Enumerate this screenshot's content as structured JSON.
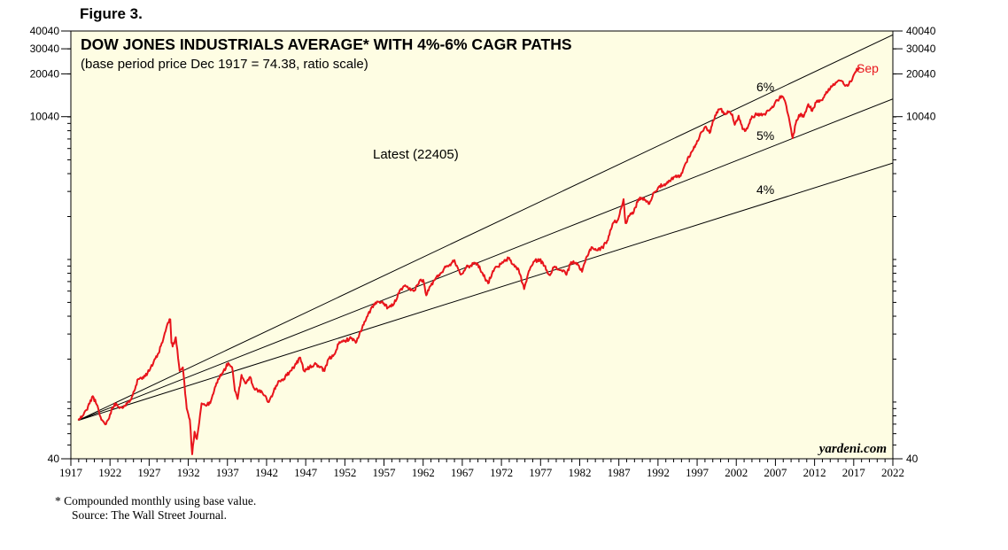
{
  "figure_label": "Figure 3.",
  "chart_data": {
    "type": "line",
    "title": "DOW JONES INDUSTRIALS AVERAGE* WITH 4%-6% CAGR PATHS",
    "subtitle": "(base period price Dec 1917 = 74.38, ratio scale)",
    "scale": "log",
    "xlim": [
      1917,
      2022
    ],
    "ylim": [
      40,
      40040
    ],
    "x_ticks": [
      "1917",
      "1922",
      "1927",
      "1932",
      "1937",
      "1942",
      "1947",
      "1952",
      "1957",
      "1962",
      "1967",
      "1972",
      "1977",
      "1982",
      "1987",
      "1992",
      "1997",
      "2002",
      "2007",
      "2012",
      "2017",
      "2022"
    ],
    "y_ticks_left": [
      "40040",
      "30040",
      "20040",
      "10040",
      "40"
    ],
    "y_ticks_right": [
      "40040",
      "30040",
      "20040",
      "10040",
      "40"
    ],
    "base": {
      "year": 1917.95,
      "value": 74.38
    },
    "paths": [
      {
        "name": "6%",
        "label": "6%",
        "rate": 0.06
      },
      {
        "name": "5%",
        "label": "5%",
        "rate": 0.05
      },
      {
        "name": "4%",
        "label": "4%",
        "rate": 0.04
      }
    ],
    "series": [
      {
        "name": "Dow Jones Industrials Average",
        "color": "#e8141b",
        "points": [
          [
            1917.95,
            74.4
          ],
          [
            1918.5,
            80
          ],
          [
            1919.0,
            88
          ],
          [
            1919.8,
            110
          ],
          [
            1920.3,
            96
          ],
          [
            1920.9,
            75
          ],
          [
            1921.5,
            70
          ],
          [
            1922.0,
            82
          ],
          [
            1922.6,
            98
          ],
          [
            1923.3,
            92
          ],
          [
            1923.9,
            94
          ],
          [
            1924.5,
            100
          ],
          [
            1925.0,
            118
          ],
          [
            1925.6,
            145
          ],
          [
            1926.2,
            150
          ],
          [
            1926.8,
            160
          ],
          [
            1927.5,
            185
          ],
          [
            1928.2,
            220
          ],
          [
            1928.8,
            275
          ],
          [
            1929.4,
            360
          ],
          [
            1929.7,
            380
          ],
          [
            1929.85,
            260
          ],
          [
            1930.0,
            245
          ],
          [
            1930.4,
            285
          ],
          [
            1930.9,
            165
          ],
          [
            1931.3,
            175
          ],
          [
            1931.8,
            90
          ],
          [
            1932.2,
            75
          ],
          [
            1932.5,
            43
          ],
          [
            1932.8,
            62
          ],
          [
            1933.1,
            55
          ],
          [
            1933.7,
            98
          ],
          [
            1934.2,
            95
          ],
          [
            1934.8,
            98
          ],
          [
            1935.3,
            120
          ],
          [
            1935.8,
            145
          ],
          [
            1936.4,
            160
          ],
          [
            1937.1,
            188
          ],
          [
            1937.6,
            175
          ],
          [
            1937.95,
            120
          ],
          [
            1938.3,
            105
          ],
          [
            1938.8,
            155
          ],
          [
            1939.3,
            135
          ],
          [
            1939.9,
            150
          ],
          [
            1940.4,
            125
          ],
          [
            1941.0,
            120
          ],
          [
            1941.5,
            115
          ],
          [
            1942.3,
            100
          ],
          [
            1942.9,
            118
          ],
          [
            1943.5,
            140
          ],
          [
            1944.2,
            145
          ],
          [
            1945.0,
            165
          ],
          [
            1945.6,
            180
          ],
          [
            1946.3,
            205
          ],
          [
            1946.8,
            165
          ],
          [
            1947.5,
            175
          ],
          [
            1948.3,
            185
          ],
          [
            1948.8,
            175
          ],
          [
            1949.4,
            165
          ],
          [
            1949.9,
            200
          ],
          [
            1950.5,
            210
          ],
          [
            1951.2,
            255
          ],
          [
            1952.0,
            270
          ],
          [
            1952.8,
            280
          ],
          [
            1953.5,
            265
          ],
          [
            1954.2,
            330
          ],
          [
            1954.9,
            400
          ],
          [
            1955.5,
            470
          ],
          [
            1956.3,
            505
          ],
          [
            1956.9,
            490
          ],
          [
            1957.5,
            460
          ],
          [
            1958.2,
            480
          ],
          [
            1958.9,
            580
          ],
          [
            1959.5,
            650
          ],
          [
            1960.2,
            620
          ],
          [
            1960.8,
            600
          ],
          [
            1961.5,
            700
          ],
          [
            1962.0,
            720
          ],
          [
            1962.4,
            560
          ],
          [
            1962.9,
            650
          ],
          [
            1963.5,
            720
          ],
          [
            1964.2,
            800
          ],
          [
            1965.0,
            900
          ],
          [
            1965.6,
            940
          ],
          [
            1966.0,
            990
          ],
          [
            1966.5,
            850
          ],
          [
            1966.9,
            790
          ],
          [
            1967.5,
            880
          ],
          [
            1968.0,
            900
          ],
          [
            1968.5,
            950
          ],
          [
            1969.0,
            920
          ],
          [
            1969.6,
            800
          ],
          [
            1970.3,
            680
          ],
          [
            1970.9,
            830
          ],
          [
            1971.5,
            890
          ],
          [
            1972.2,
            950
          ],
          [
            1972.9,
            1020
          ],
          [
            1973.5,
            920
          ],
          [
            1974.2,
            850
          ],
          [
            1974.9,
            620
          ],
          [
            1975.5,
            830
          ],
          [
            1976.2,
            970
          ],
          [
            1976.9,
            1000
          ],
          [
            1977.5,
            900
          ],
          [
            1978.1,
            780
          ],
          [
            1978.7,
            880
          ],
          [
            1979.3,
            850
          ],
          [
            1979.9,
            840
          ],
          [
            1980.3,
            780
          ],
          [
            1980.9,
            960
          ],
          [
            1981.5,
            950
          ],
          [
            1982.3,
            820
          ],
          [
            1982.9,
            1050
          ],
          [
            1983.5,
            1220
          ],
          [
            1984.2,
            1160
          ],
          [
            1984.9,
            1210
          ],
          [
            1985.5,
            1350
          ],
          [
            1986.2,
            1780
          ],
          [
            1986.9,
            1900
          ],
          [
            1987.6,
            2650
          ],
          [
            1987.85,
            1800
          ],
          [
            1988.4,
            2050
          ],
          [
            1988.9,
            2150
          ],
          [
            1989.5,
            2650
          ],
          [
            1990.2,
            2700
          ],
          [
            1990.8,
            2450
          ],
          [
            1991.5,
            2950
          ],
          [
            1992.2,
            3280
          ],
          [
            1992.9,
            3300
          ],
          [
            1993.5,
            3550
          ],
          [
            1994.2,
            3800
          ],
          [
            1994.9,
            3850
          ],
          [
            1995.5,
            4700
          ],
          [
            1996.2,
            5600
          ],
          [
            1996.9,
            6450
          ],
          [
            1997.5,
            7800
          ],
          [
            1998.0,
            8500
          ],
          [
            1998.6,
            7700
          ],
          [
            1999.0,
            9300
          ],
          [
            1999.5,
            10800
          ],
          [
            2000.0,
            11400
          ],
          [
            2000.5,
            10600
          ],
          [
            2001.0,
            10800
          ],
          [
            2001.5,
            10400
          ],
          [
            2001.8,
            8800
          ],
          [
            2002.3,
            10200
          ],
          [
            2002.8,
            8200
          ],
          [
            2003.2,
            8000
          ],
          [
            2003.8,
            9600
          ],
          [
            2004.4,
            10300
          ],
          [
            2005.0,
            10500
          ],
          [
            2005.6,
            10500
          ],
          [
            2006.2,
            11100
          ],
          [
            2006.9,
            12400
          ],
          [
            2007.5,
            13500
          ],
          [
            2007.8,
            14000
          ],
          [
            2008.3,
            12500
          ],
          [
            2008.9,
            8700
          ],
          [
            2009.2,
            7100
          ],
          [
            2009.7,
            9500
          ],
          [
            2010.2,
            10500
          ],
          [
            2010.6,
            10000
          ],
          [
            2011.2,
            12300
          ],
          [
            2011.7,
            11000
          ],
          [
            2012.3,
            13000
          ],
          [
            2012.9,
            13100
          ],
          [
            2013.5,
            15000
          ],
          [
            2014.2,
            16300
          ],
          [
            2014.9,
            17700
          ],
          [
            2015.5,
            17800
          ],
          [
            2015.9,
            16500
          ],
          [
            2016.2,
            16500
          ],
          [
            2016.8,
            18200
          ],
          [
            2017.2,
            20600
          ],
          [
            2017.7,
            22405
          ]
        ]
      }
    ],
    "annotations": [
      {
        "name": "latest-annotation",
        "text": "Latest (22405)"
      },
      {
        "name": "sep-label",
        "text": "Sep"
      }
    ],
    "source_mark": "yardeni.com"
  },
  "footnote": {
    "line1": "* Compounded monthly using base value.",
    "line2": "Source: The Wall Street Journal."
  },
  "colors": {
    "plot_bg": "#fefde3",
    "series": "#e8141b",
    "paths": "#000000"
  }
}
